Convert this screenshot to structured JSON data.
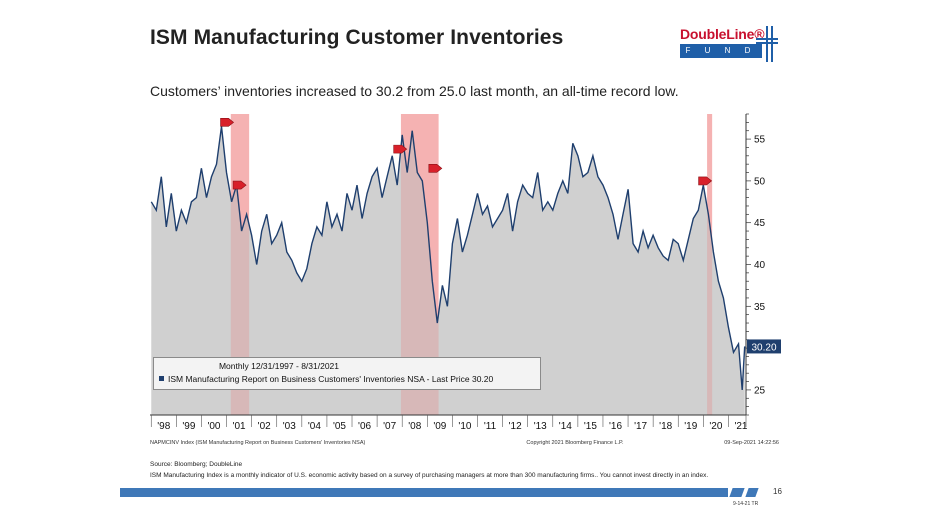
{
  "header": {
    "title": "ISM Manufacturing Customer Inventories",
    "subtitle": "Customers’ inventories increased to 30.2 from 25.0 last month, an all-time record low."
  },
  "logo": {
    "name": "DoubleLine®",
    "sub": "F U N D S"
  },
  "chart_data": {
    "type": "area",
    "x_tick_labels": [
      "'98",
      "'99",
      "'00",
      "'01",
      "'02",
      "'03",
      "'04",
      "'05",
      "'06",
      "'07",
      "'08",
      "'09",
      "'10",
      "'11",
      "'12",
      "'13",
      "'14",
      "'15",
      "'16",
      "'17",
      "'18",
      "'19",
      "'20",
      "'21"
    ],
    "y_ticks": [
      25,
      30,
      35,
      40,
      45,
      50,
      55
    ],
    "ylim": [
      22,
      58
    ],
    "x_range": [
      1997.95,
      2021.7
    ],
    "series": [
      {
        "name": "ISM Manufacturing Report on Business Customers' Inventories NSA",
        "x": [
          1998.0,
          1998.2,
          1998.4,
          1998.6,
          1998.8,
          1999.0,
          1999.2,
          1999.4,
          1999.6,
          1999.8,
          2000.0,
          2000.2,
          2000.4,
          2000.6,
          2000.8,
          2001.0,
          2001.2,
          2001.4,
          2001.6,
          2001.8,
          2002.0,
          2002.2,
          2002.4,
          2002.6,
          2002.8,
          2003.0,
          2003.2,
          2003.4,
          2003.6,
          2003.8,
          2004.0,
          2004.2,
          2004.4,
          2004.6,
          2004.8,
          2005.0,
          2005.2,
          2005.4,
          2005.6,
          2005.8,
          2006.0,
          2006.2,
          2006.4,
          2006.6,
          2006.8,
          2007.0,
          2007.2,
          2007.4,
          2007.6,
          2007.8,
          2008.0,
          2008.2,
          2008.4,
          2008.6,
          2008.8,
          2009.0,
          2009.2,
          2009.4,
          2009.6,
          2009.8,
          2010.0,
          2010.2,
          2010.4,
          2010.6,
          2010.8,
          2011.0,
          2011.2,
          2011.4,
          2011.6,
          2011.8,
          2012.0,
          2012.2,
          2012.4,
          2012.6,
          2012.8,
          2013.0,
          2013.2,
          2013.4,
          2013.6,
          2013.8,
          2014.0,
          2014.2,
          2014.4,
          2014.6,
          2014.8,
          2015.0,
          2015.2,
          2015.4,
          2015.6,
          2015.8,
          2016.0,
          2016.2,
          2016.4,
          2016.6,
          2016.8,
          2017.0,
          2017.2,
          2017.4,
          2017.6,
          2017.8,
          2018.0,
          2018.2,
          2018.4,
          2018.6,
          2018.8,
          2019.0,
          2019.2,
          2019.4,
          2019.6,
          2019.8,
          2020.0,
          2020.2,
          2020.4,
          2020.6,
          2020.8,
          2021.0,
          2021.2,
          2021.4,
          2021.55,
          2021.65
        ],
        "values": [
          47.5,
          46.5,
          50.5,
          44.5,
          48.5,
          44.0,
          46.5,
          45.0,
          47.5,
          48.0,
          51.5,
          48.0,
          50.5,
          52.0,
          56.5,
          51.0,
          47.5,
          49.5,
          44.0,
          46.0,
          43.5,
          40.0,
          44.0,
          46.0,
          42.5,
          43.5,
          45.0,
          41.5,
          40.5,
          39.0,
          38.0,
          39.5,
          42.5,
          44.5,
          43.5,
          47.5,
          44.5,
          46.0,
          44.0,
          48.5,
          46.5,
          49.5,
          45.5,
          48.5,
          50.5,
          51.5,
          48.0,
          50.5,
          53.0,
          49.5,
          55.5,
          51.0,
          56.0,
          51.0,
          50.0,
          45.0,
          38.0,
          33.0,
          37.5,
          35.0,
          42.5,
          45.5,
          41.5,
          43.5,
          46.0,
          48.5,
          46.0,
          47.0,
          44.5,
          45.5,
          46.5,
          48.5,
          44.0,
          47.5,
          49.5,
          48.5,
          48.0,
          51.0,
          46.5,
          47.5,
          46.5,
          48.5,
          50.0,
          48.5,
          54.5,
          53.0,
          50.5,
          51.0,
          53.0,
          50.5,
          49.5,
          48.0,
          46.0,
          43.0,
          46.0,
          49.0,
          42.5,
          41.5,
          44.0,
          42.0,
          43.5,
          42.0,
          41.0,
          40.5,
          43.0,
          42.5,
          40.5,
          43.0,
          45.5,
          46.5,
          49.5,
          46.0,
          41.5,
          38.0,
          36.0,
          32.5,
          29.5,
          30.5,
          25.0,
          30.2
        ]
      }
    ],
    "shaded_periods": [
      [
        2001.17,
        2001.9
      ],
      [
        2007.95,
        2009.45
      ],
      [
        2020.15,
        2020.35
      ]
    ],
    "markers": [
      {
        "x": 2001.0,
        "y": 57.0
      },
      {
        "x": 2001.5,
        "y": 49.5
      },
      {
        "x": 2007.9,
        "y": 53.8
      },
      {
        "x": 2009.3,
        "y": 51.5
      },
      {
        "x": 2020.05,
        "y": 50.0
      }
    ],
    "last_value_label": "30.20",
    "legend": {
      "period": "Monthly 12/31/1997 - 8/31/2021",
      "entry": "ISM Manufacturing Report on Business Customers' Inventories NSA - Last Price 30.20"
    },
    "footnote_left": "NAPMCINV Index (ISM Manufacturing Report on Business Customers' Inventories NSA)",
    "footnote_center": "Copyright 2021 Bloomberg Finance L.P.",
    "footnote_right": "09-Sep-2021 14:22:56",
    "colors": {
      "area": "#c8c8c8",
      "line": "#1f3f6e",
      "shade": "#f08b8b",
      "marker": "#d8202a",
      "badge": "#1f3f6e"
    }
  },
  "footer": {
    "source": "Source: Bloomberg; DoubleLine",
    "note": "ISM Manufacturing Index is a monthly indicator of U.S. economic activity based on a survey of purchasing managers at more than 300 manufacturing firms.. You cannot invest directly in an index.",
    "page": "16",
    "code": "9-14-21 TR"
  }
}
